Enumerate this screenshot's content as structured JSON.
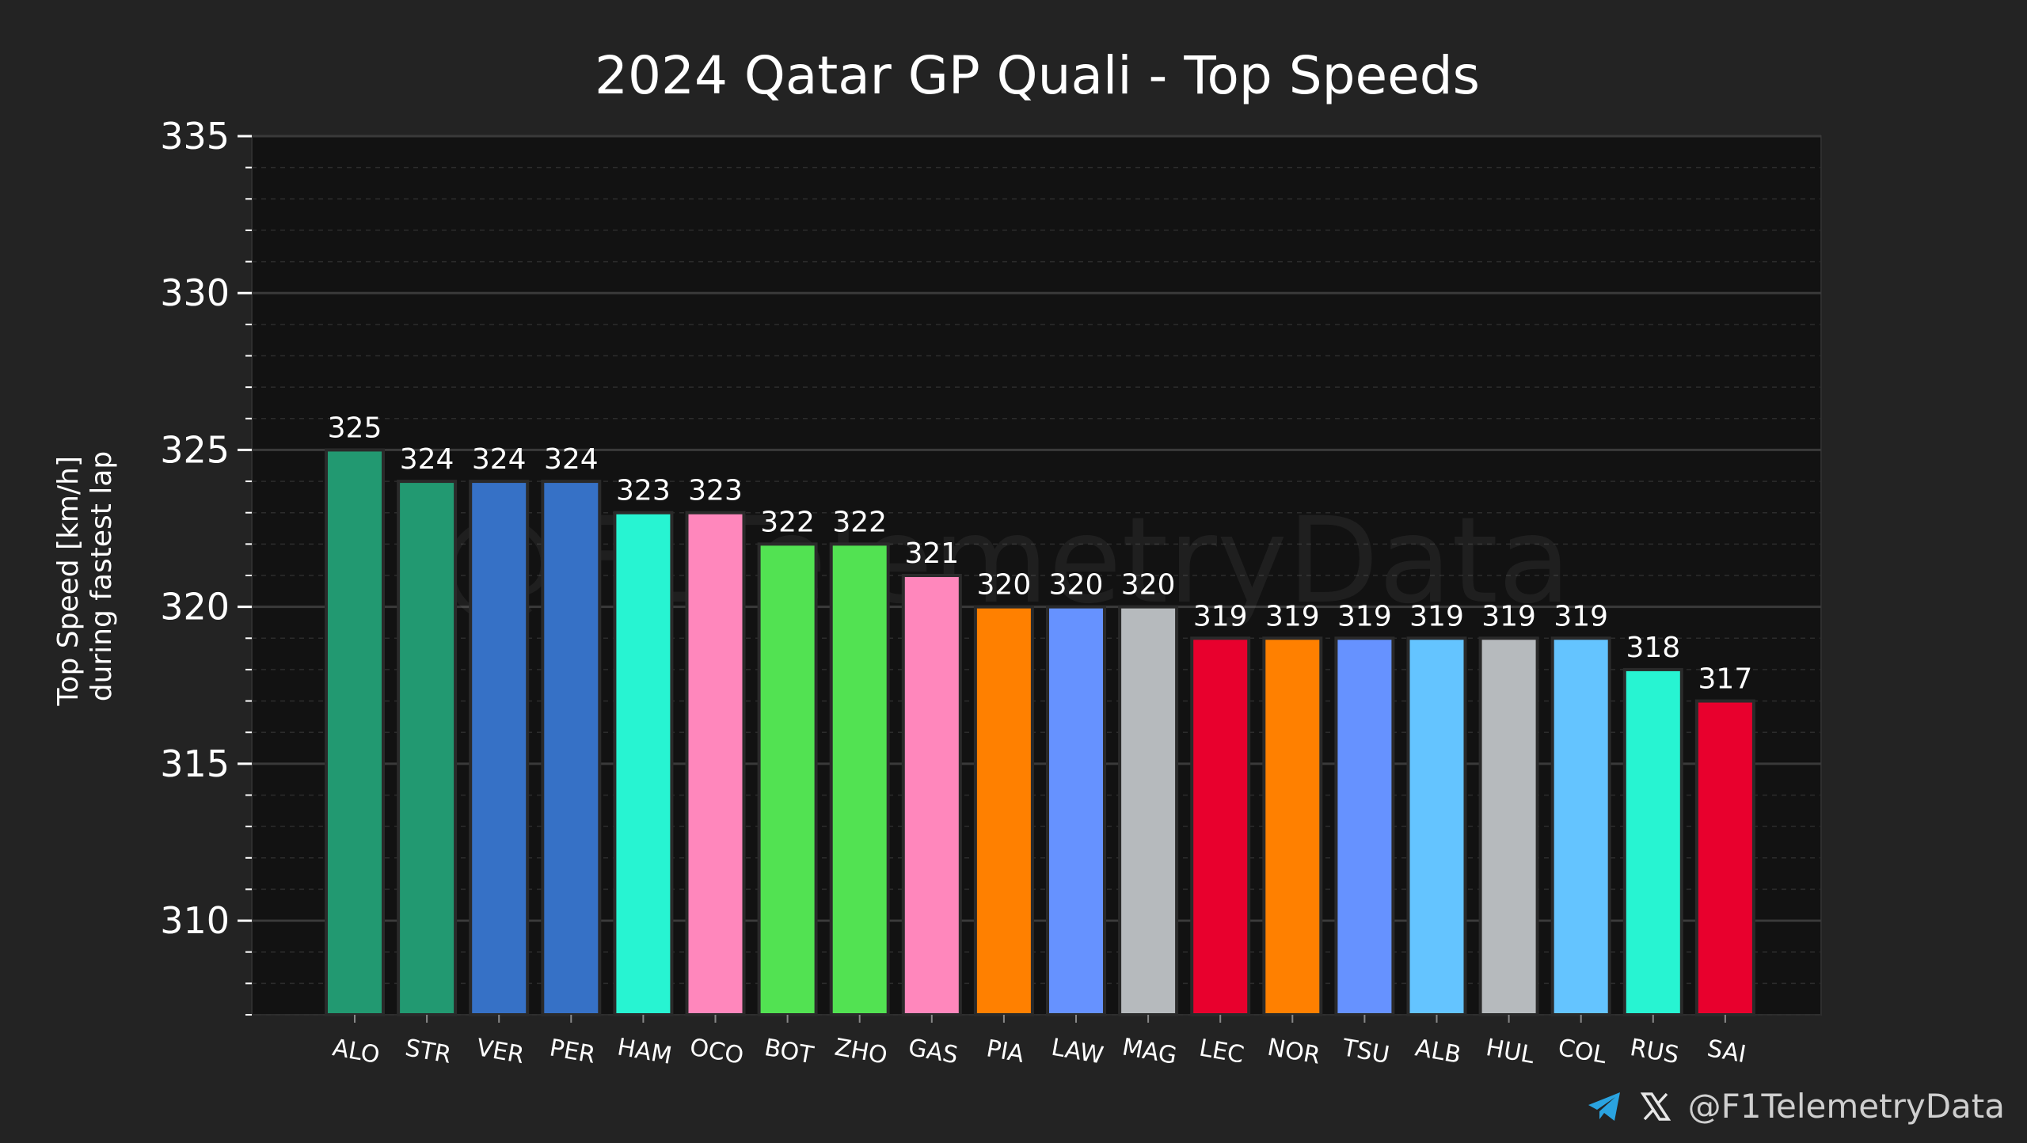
{
  "chart_data": {
    "type": "bar",
    "title": "2024 Qatar GP Quali - Top Speeds",
    "xlabel": "",
    "ylabel": "Top Speed [km/h]\nduring fastest lap",
    "ylabel_lines": [
      "Top Speed [km/h]",
      "during fastest lap"
    ],
    "ylim": [
      307,
      335
    ],
    "yticks": [
      310,
      315,
      320,
      325,
      330,
      335
    ],
    "grid": true,
    "categories": [
      "ALO",
      "STR",
      "VER",
      "PER",
      "HAM",
      "OCO",
      "BOT",
      "ZHO",
      "GAS",
      "PIA",
      "LAW",
      "MAG",
      "LEC",
      "NOR",
      "TSU",
      "ALB",
      "HUL",
      "COL",
      "RUS",
      "SAI"
    ],
    "values": [
      325,
      324,
      324,
      324,
      323,
      323,
      322,
      322,
      321,
      320,
      320,
      320,
      319,
      319,
      319,
      319,
      319,
      319,
      318,
      317
    ],
    "colors": [
      "#229971",
      "#229971",
      "#3671c6",
      "#3671c6",
      "#27f4d2",
      "#ff87bc",
      "#52e252",
      "#52e252",
      "#ff87bc",
      "#ff8000",
      "#6692ff",
      "#b6babd",
      "#e8002d",
      "#ff8000",
      "#6692ff",
      "#64c4ff",
      "#b6babd",
      "#64c4ff",
      "#27f4d2",
      "#e8002d"
    ],
    "watermark": "@F1TelemetryData"
  },
  "footer": {
    "handle": "@F1TelemetryData",
    "icons": [
      "telegram-icon",
      "x-icon"
    ]
  },
  "style": {
    "background": "#232323",
    "plot_background": "#121212",
    "text_color": "#ffffff",
    "grid_major": "#3a3a3a",
    "grid_minor": "#2c2c2c"
  }
}
